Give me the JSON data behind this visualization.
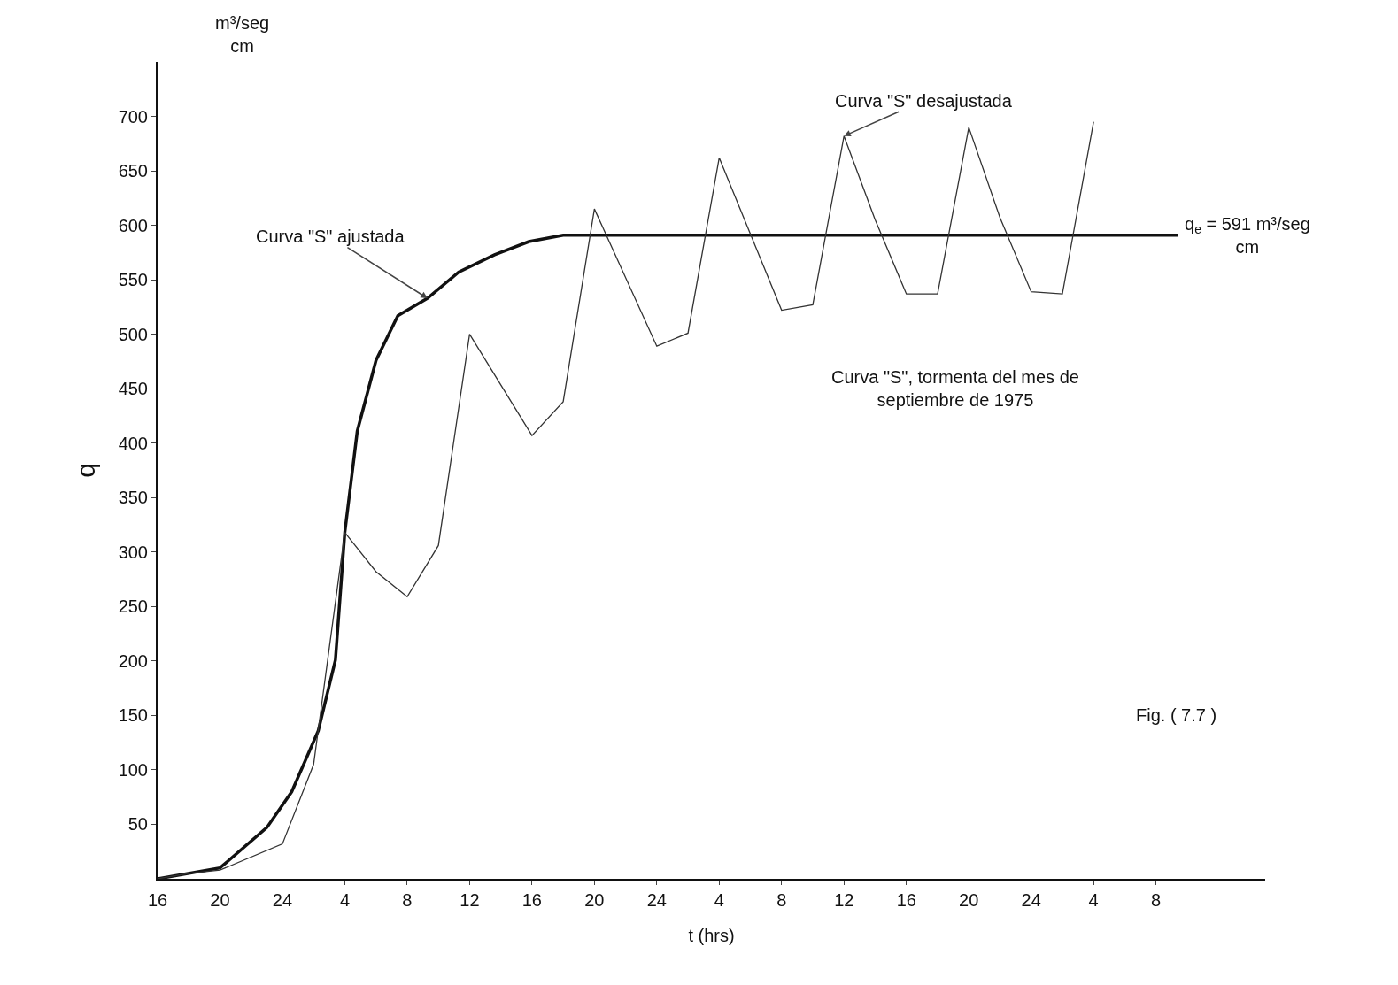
{
  "chart_data": {
    "type": "line",
    "ylabel": "q",
    "xlabel": "t (hrs)",
    "xlim": [
      "1975-09-01T16:00",
      "1975-09-04T15:00"
    ],
    "ylim": [
      0,
      750
    ],
    "xticks": [
      {
        "value": "1975-09-01T16:00",
        "label": "16"
      },
      {
        "value": "1975-09-01T20:00",
        "label": "20"
      },
      {
        "value": "1975-09-02T00:00",
        "label": "24"
      },
      {
        "value": "1975-09-02T04:00",
        "label": "4"
      },
      {
        "value": "1975-09-02T08:00",
        "label": "8"
      },
      {
        "value": "1975-09-02T12:00",
        "label": "12"
      },
      {
        "value": "1975-09-02T16:00",
        "label": "16"
      },
      {
        "value": "1975-09-02T20:00",
        "label": "20"
      },
      {
        "value": "1975-09-03T00:00",
        "label": "24"
      },
      {
        "value": "1975-09-03T04:00",
        "label": "4"
      },
      {
        "value": "1975-09-03T08:00",
        "label": "8"
      },
      {
        "value": "1975-09-03T12:00",
        "label": "12"
      },
      {
        "value": "1975-09-03T16:00",
        "label": "16"
      },
      {
        "value": "1975-09-03T20:00",
        "label": "20"
      },
      {
        "value": "1975-09-04T00:00",
        "label": "24"
      },
      {
        "value": "1975-09-04T04:00",
        "label": "4"
      },
      {
        "value": "1975-09-04T08:00",
        "label": "8"
      }
    ],
    "yticks": [
      50,
      100,
      150,
      200,
      250,
      300,
      350,
      400,
      450,
      500,
      550,
      600,
      650,
      700
    ],
    "grid": false,
    "series": [
      {
        "color": "#111111",
        "type": "line",
        "x": [
          "1975-09-01T16:00",
          "1975-09-01T20:00",
          "1975-09-01T23:00",
          "1975-09-02T00:36",
          "1975-09-02T02:18",
          "1975-09-02T03:24",
          "1975-09-02T04:00",
          "1975-09-02T04:48",
          "1975-09-02T06:00",
          "1975-09-02T07:24",
          "1975-09-02T09:18",
          "1975-09-02T11:18",
          "1975-09-02T13:36",
          "1975-09-02T15:48",
          "1975-09-02T18:00",
          "1975-09-04T09:24"
        ],
        "values": [
          0,
          10,
          47,
          80,
          136,
          201,
          318,
          411,
          476,
          517,
          533,
          557,
          573,
          585,
          591,
          591
        ]
      },
      {
        "color": "#333333",
        "type": "line",
        "x": [
          "1975-09-01T16:00",
          "1975-09-01T18:00",
          "1975-09-01T20:00",
          "1975-09-02T00:00",
          "1975-09-02T02:00",
          "1975-09-02T04:00",
          "1975-09-02T06:00",
          "1975-09-02T08:00",
          "1975-09-02T10:00",
          "1975-09-02T12:00",
          "1975-09-02T16:00",
          "1975-09-02T18:00",
          "1975-09-02T20:00",
          "1975-09-03T00:00",
          "1975-09-03T02:00",
          "1975-09-03T04:00",
          "1975-09-03T08:00",
          "1975-09-03T10:00",
          "1975-09-03T12:00",
          "1975-09-03T14:00",
          "1975-09-03T16:00",
          "1975-09-03T18:00",
          "1975-09-03T20:00",
          "1975-09-03T22:00",
          "1975-09-04T00:00",
          "1975-09-04T02:00",
          "1975-09-04T04:00"
        ],
        "values": [
          0,
          5,
          8,
          32,
          105,
          318,
          282,
          259,
          306,
          500,
          407,
          438,
          615,
          489,
          501,
          662,
          522,
          527,
          682,
          605,
          537,
          537,
          690,
          607,
          539,
          537,
          695
        ]
      }
    ],
    "annotations": [
      "m³/seg\ncm",
      {
        "text": "Curva \"S\" ajustada",
        "x": "1975-09-02T09:18",
        "y": 533
      },
      {
        "text": "Curva \"S\" desajustada",
        "x": "1975-09-03T12:00",
        "y": 682
      },
      {
        "text": "q$_{e}$ = 591 m³/seg\ncm",
        "x": "1975-09-04T09:24",
        "y": 591
      },
      "Curva \"S\", tormenta del mes de\nseptiembre de 1975",
      "Fig. ( 7.7 )"
    ]
  }
}
